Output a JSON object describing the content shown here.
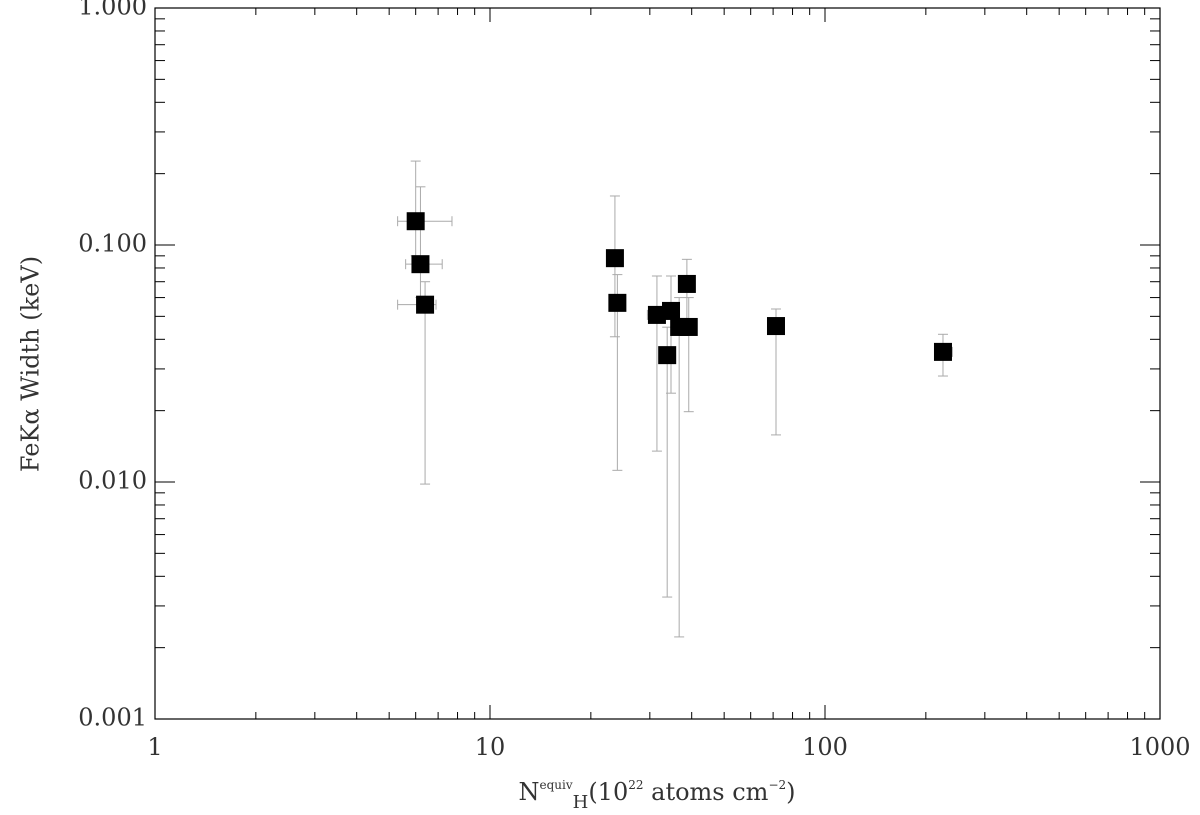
{
  "chart_data": {
    "type": "scatter",
    "ylabel": "FeKα Width (keV)",
    "xlabel": [
      {
        "text": "N"
      },
      {
        "text": "equiv",
        "style": "sup"
      },
      {
        "text": "H",
        "style": "sub"
      },
      {
        "text": "(10"
      },
      {
        "text": "22",
        "style": "sup"
      },
      {
        "text": " atoms cm"
      },
      {
        "text": "−2",
        "style": "sup"
      },
      {
        "text": ")"
      }
    ],
    "xlog": true,
    "ylog": true,
    "xlim": [
      1,
      1000
    ],
    "ylim": [
      0.001,
      1
    ],
    "xticks": [
      1,
      10,
      100,
      1000
    ],
    "yticks": [
      {
        "value": 0.001,
        "label": "0.001"
      },
      {
        "value": 0.01,
        "label": "0.010"
      },
      {
        "value": 0.1,
        "label": "0.100"
      },
      {
        "value": 1,
        "label": "1.000"
      }
    ],
    "series": [
      {
        "color": "#000000",
        "errcolor": "#aaaaaa",
        "x": [
          6.0,
          6.2,
          6.4,
          23.6,
          24.0,
          31.5,
          33.8,
          34.7,
          36.7,
          38.7,
          39.2,
          71.4,
          225
        ],
        "y": [
          0.126,
          0.083,
          0.056,
          0.088,
          0.057,
          0.0507,
          0.0343,
          0.0527,
          0.0451,
          0.0685,
          0.0451,
          0.0455,
          0.0354
        ],
        "x_lo": [
          5.3,
          5.6,
          5.3,
          23.2,
          23.5,
          29.5,
          33.2,
          33.5,
          36.0,
          37.5,
          38.5,
          70,
          215
        ],
        "x_hi": [
          7.7,
          7.2,
          6.9,
          24.1,
          24.5,
          34,
          34.5,
          36,
          37.5,
          40,
          40,
          73,
          240
        ],
        "y_lo": [
          0.09,
          0.06,
          0.0098,
          0.041,
          0.0112,
          0.0135,
          0.00327,
          0.0237,
          0.00222,
          0.045,
          0.0198,
          0.0158,
          0.028
        ],
        "y_hi": [
          0.226,
          0.176,
          0.07,
          0.161,
          0.075,
          0.074,
          0.045,
          0.074,
          0.06,
          0.087,
          0.06,
          0.0537,
          0.042
        ]
      }
    ]
  }
}
